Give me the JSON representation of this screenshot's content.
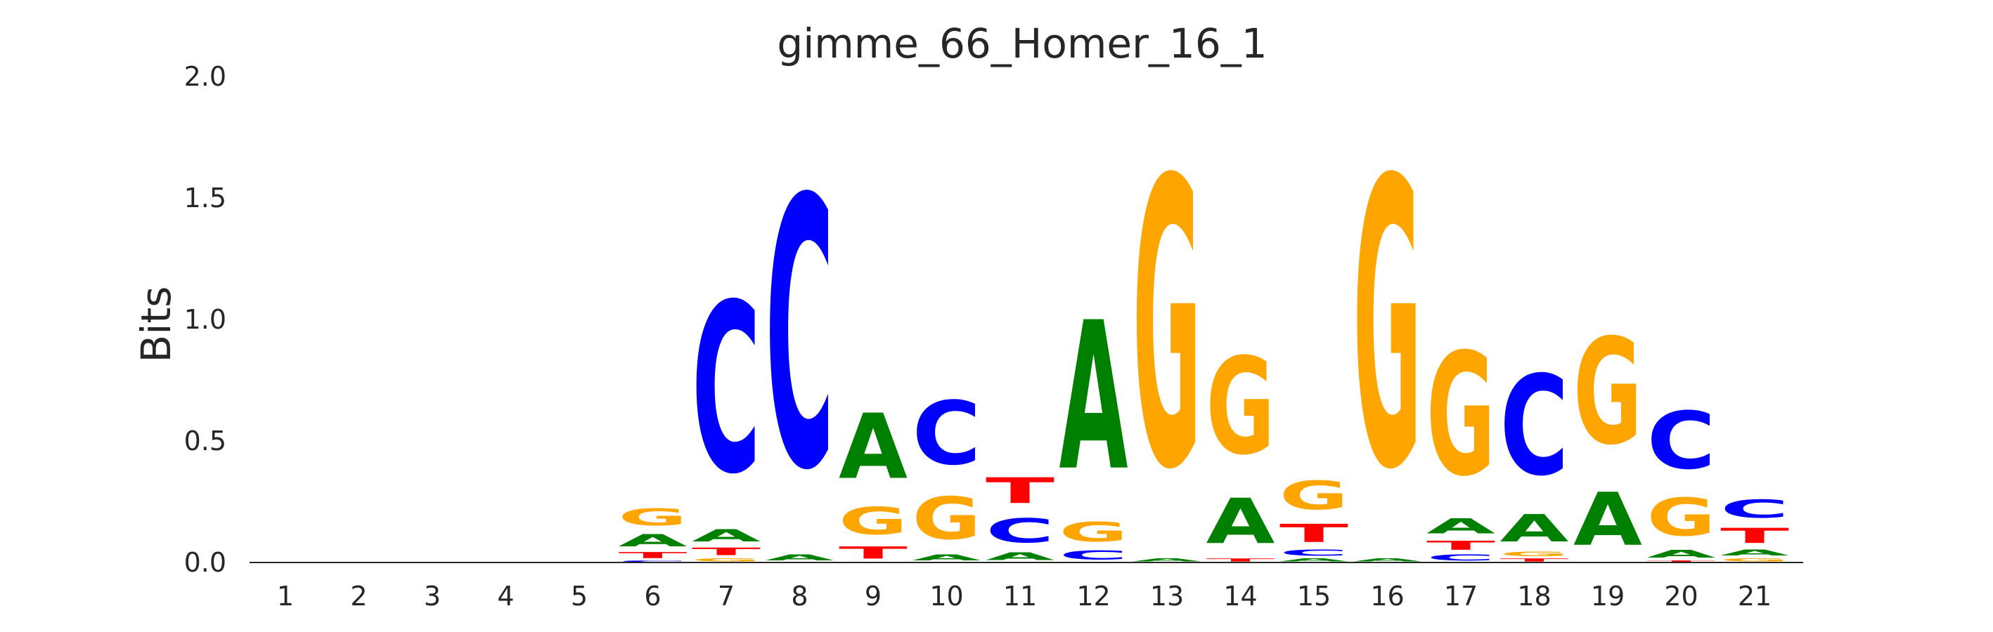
{
  "chart_data": {
    "type": "sequence-logo",
    "title": "gimme_66_Homer_16_1",
    "ylabel": "Bits",
    "xlabel": "",
    "ylim": [
      0,
      2.0
    ],
    "yticks": [
      "0.0",
      "0.5",
      "1.0",
      "1.5",
      "2.0"
    ],
    "grid": false,
    "colors": {
      "A": "#008000",
      "C": "#0000ff",
      "G": "#ffa500",
      "T": "#ff0000"
    },
    "positions": [
      {
        "label": "1",
        "stack": []
      },
      {
        "label": "2",
        "stack": []
      },
      {
        "label": "3",
        "stack": []
      },
      {
        "label": "4",
        "stack": []
      },
      {
        "label": "5",
        "stack": []
      },
      {
        "label": "6",
        "stack": [
          {
            "base": "C",
            "bits": 0.01
          },
          {
            "base": "T",
            "bits": 0.04
          },
          {
            "base": "A",
            "bits": 0.08
          },
          {
            "base": "G",
            "bits": 0.11
          }
        ]
      },
      {
        "label": "7",
        "stack": [
          {
            "base": "G",
            "bits": 0.02
          },
          {
            "base": "T",
            "bits": 0.05
          },
          {
            "base": "A",
            "bits": 0.08
          },
          {
            "base": "C",
            "bits": 1.12
          }
        ]
      },
      {
        "label": "8",
        "stack": [
          {
            "base": "A",
            "bits": 0.04
          },
          {
            "base": "C",
            "bits": 1.78
          }
        ]
      },
      {
        "label": "9",
        "stack": [
          {
            "base": "T",
            "bits": 0.08
          },
          {
            "base": "G",
            "bits": 0.18
          },
          {
            "base": "A",
            "bits": 0.43
          }
        ]
      },
      {
        "label": "10",
        "stack": [
          {
            "base": "A",
            "bits": 0.04
          },
          {
            "base": "G",
            "bits": 0.28
          },
          {
            "base": "C",
            "bits": 0.42
          }
        ]
      },
      {
        "label": "11",
        "stack": [
          {
            "base": "A",
            "bits": 0.05
          },
          {
            "base": "C",
            "bits": 0.16
          },
          {
            "base": "T",
            "bits": 0.17
          }
        ]
      },
      {
        "label": "12",
        "stack": [
          {
            "base": "C",
            "bits": 0.06
          },
          {
            "base": "G",
            "bits": 0.13
          },
          {
            "base": "A",
            "bits": 0.98
          }
        ]
      },
      {
        "label": "13",
        "stack": [
          {
            "base": "A",
            "bits": 0.02
          },
          {
            "base": "G",
            "bits": 1.9
          }
        ]
      },
      {
        "label": "14",
        "stack": [
          {
            "base": "T",
            "bits": 0.02
          },
          {
            "base": "A",
            "bits": 0.3
          },
          {
            "base": "G",
            "bits": 0.64
          }
        ]
      },
      {
        "label": "15",
        "stack": [
          {
            "base": "A",
            "bits": 0.02
          },
          {
            "base": "C",
            "bits": 0.04
          },
          {
            "base": "T",
            "bits": 0.12
          },
          {
            "base": "G",
            "bits": 0.19
          }
        ]
      },
      {
        "label": "16",
        "stack": [
          {
            "base": "A",
            "bits": 0.02
          },
          {
            "base": "G",
            "bits": 1.9
          }
        ]
      },
      {
        "label": "17",
        "stack": [
          {
            "base": "C",
            "bits": 0.04
          },
          {
            "base": "T",
            "bits": 0.06
          },
          {
            "base": "A",
            "bits": 0.1
          },
          {
            "base": "G",
            "bits": 0.81
          }
        ]
      },
      {
        "label": "18",
        "stack": [
          {
            "base": "T",
            "bits": 0.02
          },
          {
            "base": "G",
            "bits": 0.03
          },
          {
            "base": "A",
            "bits": 0.18
          },
          {
            "base": "C",
            "bits": 0.66
          }
        ]
      },
      {
        "label": "19",
        "stack": [
          {
            "base": "A",
            "bits": 0.35
          },
          {
            "base": "G",
            "bits": 0.7
          }
        ]
      },
      {
        "label": "20",
        "stack": [
          {
            "base": "T",
            "bits": 0.01
          },
          {
            "base": "A",
            "bits": 0.05
          },
          {
            "base": "G",
            "bits": 0.25
          },
          {
            "base": "C",
            "bits": 0.38
          }
        ]
      },
      {
        "label": "21",
        "stack": [
          {
            "base": "G",
            "bits": 0.02
          },
          {
            "base": "A",
            "bits": 0.04
          },
          {
            "base": "T",
            "bits": 0.1
          },
          {
            "base": "C",
            "bits": 0.12
          }
        ]
      }
    ]
  }
}
